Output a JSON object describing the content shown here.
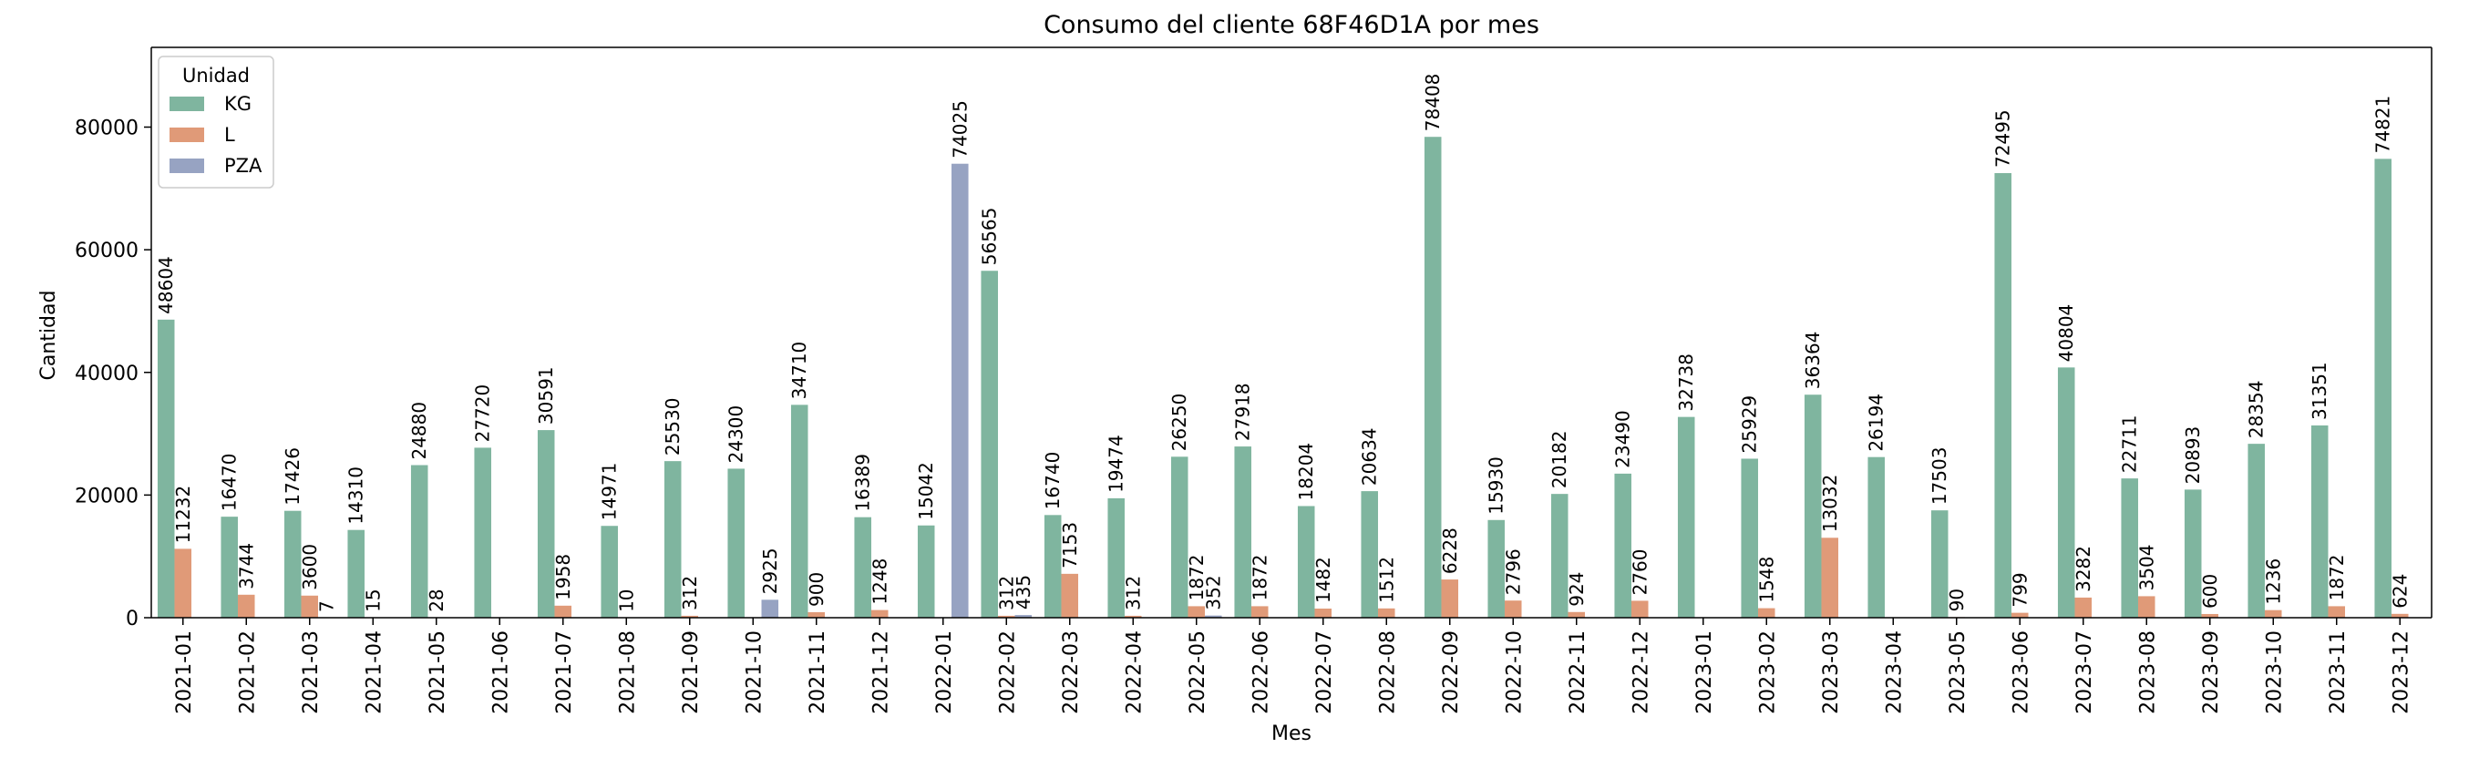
{
  "chart_data": {
    "type": "bar",
    "title": "Consumo del cliente 68F46D1A por mes",
    "xlabel": "Mes",
    "ylabel": "Cantidad",
    "ylim": [
      0,
      93000
    ],
    "yticks": [
      0,
      20000,
      40000,
      60000,
      80000
    ],
    "ytick_labels": [
      "0",
      "20000",
      "40000",
      "60000",
      "80000"
    ],
    "grid": false,
    "legend": {
      "title": "Unidad",
      "position": "top-left"
    },
    "categories": [
      "2021-01",
      "2021-02",
      "2021-03",
      "2021-04",
      "2021-05",
      "2021-06",
      "2021-07",
      "2021-08",
      "2021-09",
      "2021-10",
      "2021-11",
      "2021-12",
      "2022-01",
      "2022-02",
      "2022-03",
      "2022-04",
      "2022-05",
      "2022-06",
      "2022-07",
      "2022-08",
      "2022-09",
      "2022-10",
      "2022-11",
      "2022-12",
      "2023-01",
      "2023-02",
      "2023-03",
      "2023-04",
      "2023-05",
      "2023-06",
      "2023-07",
      "2023-08",
      "2023-09",
      "2023-10",
      "2023-11",
      "2023-12"
    ],
    "series": [
      {
        "name": "KG",
        "color": "#7fb59f",
        "values": [
          48604,
          16470,
          17426,
          14310,
          24880,
          27720,
          30591,
          14971,
          25530,
          24300,
          34710,
          16389,
          15042,
          56565,
          16740,
          19474,
          26250,
          27918,
          18204,
          20634,
          78408,
          15930,
          20182,
          23490,
          32738,
          25929,
          36364,
          26194,
          17503,
          72495,
          40804,
          22711,
          20893,
          28354,
          31351,
          74821
        ]
      },
      {
        "name": "L",
        "color": "#e09a78",
        "values": [
          11232,
          3744,
          3600,
          15,
          28,
          null,
          1958,
          10,
          312,
          null,
          900,
          1248,
          null,
          312,
          7153,
          312,
          1872,
          1872,
          1482,
          1512,
          6228,
          2796,
          924,
          2760,
          null,
          1548,
          13032,
          null,
          90,
          799,
          3282,
          3504,
          600,
          1236,
          1872,
          624
        ]
      },
      {
        "name": "PZA",
        "color": "#97a3c2",
        "values": [
          null,
          null,
          7,
          null,
          null,
          null,
          null,
          null,
          null,
          2925,
          null,
          null,
          74025,
          435,
          null,
          null,
          352,
          null,
          null,
          null,
          null,
          null,
          null,
          null,
          null,
          null,
          null,
          null,
          null,
          null,
          null,
          null,
          null,
          null,
          null,
          null
        ]
      }
    ]
  }
}
